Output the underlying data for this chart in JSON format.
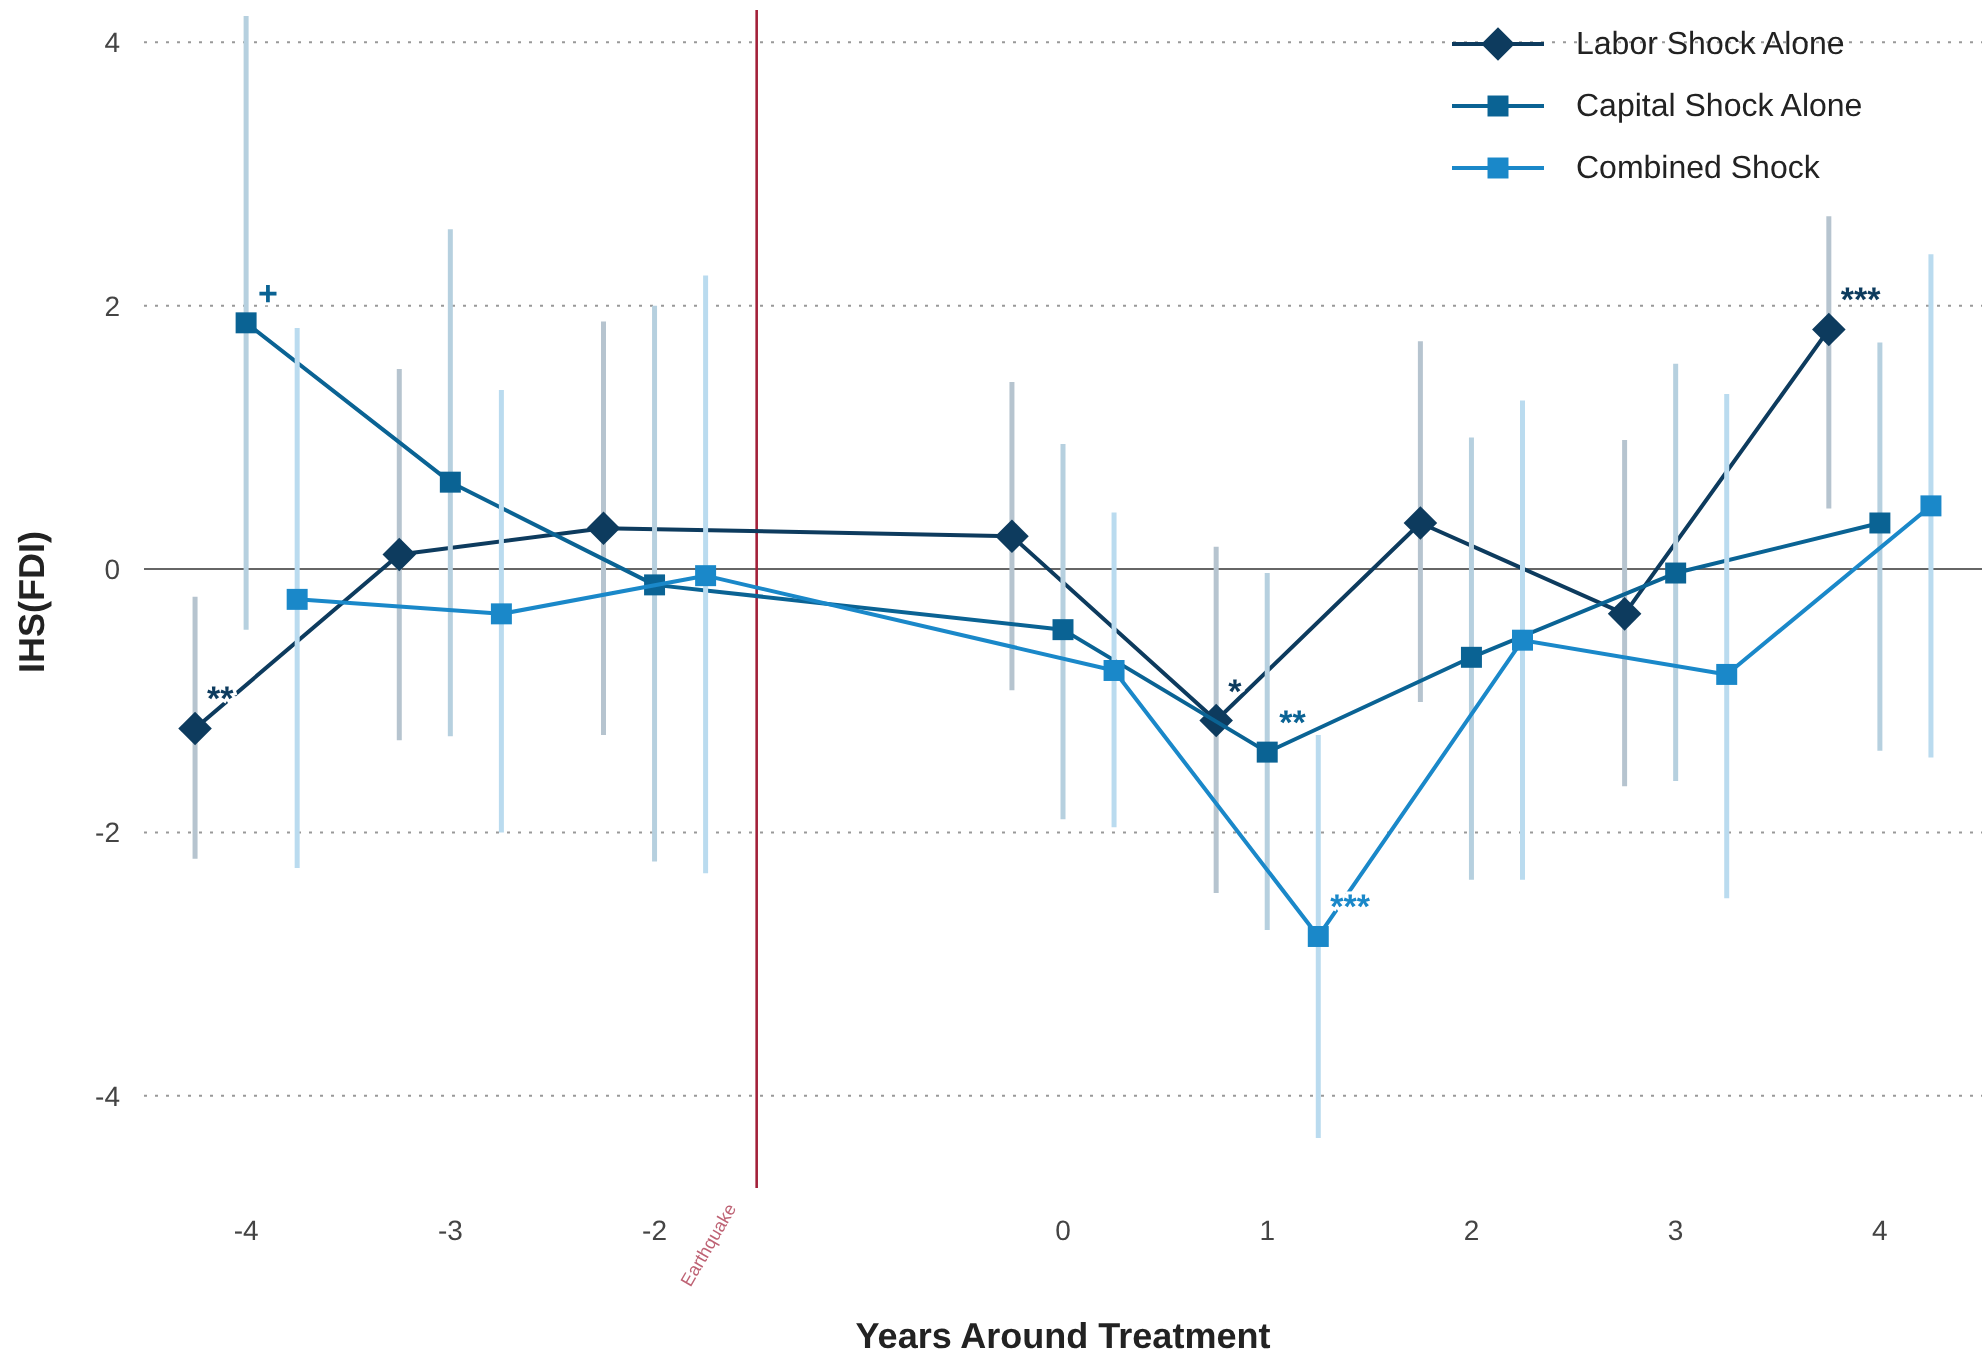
{
  "chart_data": {
    "type": "line",
    "xlabel": "Years Around Treatment",
    "ylabel": "IHS(FDI)",
    "xlim": [
      -4.5,
      4.5
    ],
    "xticks": [
      -4,
      -3,
      -2,
      0,
      1,
      2,
      3,
      4
    ],
    "ylim": [
      -4.7,
      4.2
    ],
    "yticks": [
      -4,
      -2,
      0,
      2,
      4
    ],
    "grid": "y",
    "legend": "top right",
    "line_style": "solid",
    "ref_lines": [
      {
        "axis": "y",
        "value": 0,
        "color": "#666666"
      },
      {
        "axis": "x",
        "value": -1.5,
        "label": "Earthquake",
        "color": "#a3213a"
      }
    ],
    "series": [
      {
        "name": "Labor Shock Alone",
        "color": "#0d3b5e",
        "marker": "diamond",
        "x": [
          -4.25,
          -3.25,
          -2.25,
          -0.25,
          0.75,
          1.75,
          2.75,
          3.75
        ],
        "values": [
          -1.21,
          0.11,
          0.31,
          0.25,
          -1.15,
          0.35,
          -0.34,
          1.82
        ],
        "errors": [
          [
            -2.2,
            -0.21
          ],
          [
            -1.3,
            1.52
          ],
          [
            -1.26,
            1.88
          ],
          [
            -0.92,
            1.42
          ],
          [
            -2.46,
            0.17
          ],
          [
            -1.01,
            1.73
          ],
          [
            -1.65,
            0.98
          ],
          [
            0.46,
            2.68
          ]
        ]
      },
      {
        "name": "Capital Shock Alone",
        "color": "#0a6394",
        "marker": "square",
        "x": [
          -4,
          -3,
          -2,
          0,
          1,
          2,
          3,
          4
        ],
        "values": [
          1.87,
          0.66,
          -0.12,
          -0.46,
          -1.39,
          -0.67,
          -0.03,
          0.35
        ],
        "errors": [
          [
            -0.46,
            4.2
          ],
          [
            -1.27,
            2.58
          ],
          [
            -2.22,
            2.0
          ],
          [
            -1.9,
            0.95
          ],
          [
            -2.74,
            -0.03
          ],
          [
            -2.36,
            1.0
          ],
          [
            -1.61,
            1.56
          ],
          [
            -1.38,
            1.72
          ]
        ]
      },
      {
        "name": "Combined Shock",
        "color": "#1a88c9",
        "marker": "square",
        "x": [
          -3.75,
          -2.75,
          -1.75,
          0.25,
          1.25,
          2.25,
          3.25,
          4.25
        ],
        "values": [
          -0.23,
          -0.34,
          -0.05,
          -0.77,
          -2.79,
          -0.54,
          -0.8,
          0.48
        ],
        "errors": [
          [
            -2.27,
            1.83
          ],
          [
            -2.0,
            1.36
          ],
          [
            -2.31,
            2.23
          ],
          [
            -1.96,
            0.43
          ],
          [
            -4.32,
            -1.26
          ],
          [
            -2.36,
            1.28
          ],
          [
            -2.5,
            1.33
          ],
          [
            -1.43,
            2.39
          ]
        ]
      }
    ],
    "annotations": [
      {
        "text": "**",
        "x": -4.25,
        "y": -1.21
      },
      {
        "text": "+",
        "x": -4,
        "y": 1.87
      },
      {
        "text": "*",
        "x": 0.75,
        "y": -1.15
      },
      {
        "text": "**",
        "x": 1,
        "y": -1.39
      },
      {
        "text": "***",
        "x": 1.25,
        "y": -2.79
      },
      {
        "text": "***",
        "x": 3.75,
        "y": 1.82
      }
    ]
  }
}
